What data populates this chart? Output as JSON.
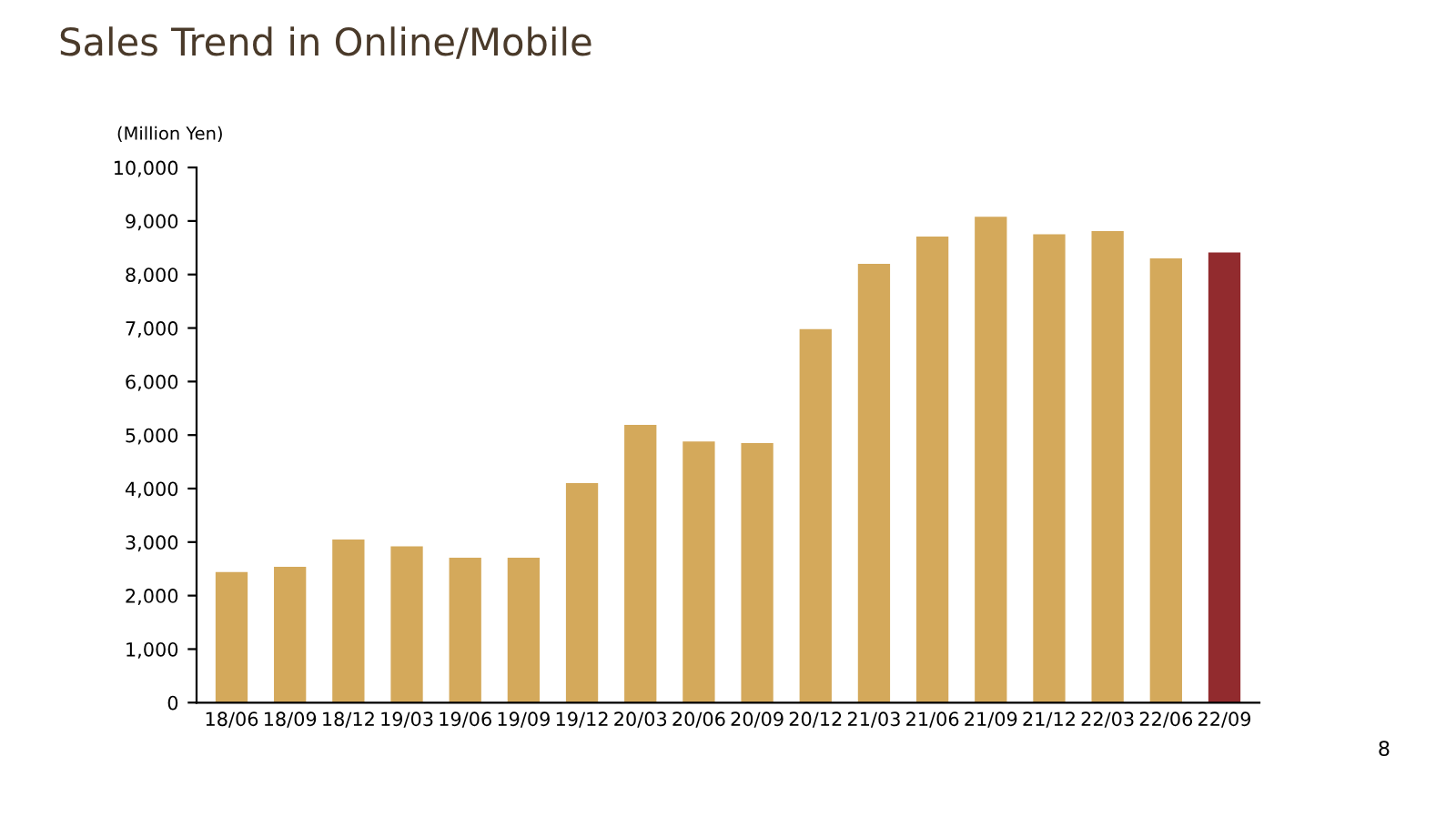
{
  "chart_data": {
    "type": "bar",
    "title": "Sales Trend in Online/Mobile",
    "ylabel": "(Million Yen)",
    "categories": [
      "18/06",
      "18/09",
      "18/12",
      "19/03",
      "19/06",
      "19/09",
      "19/12",
      "20/03",
      "20/06",
      "20/09",
      "20/12",
      "21/03",
      "21/06",
      "21/09",
      "21/12",
      "22/03",
      "22/06",
      "22/09"
    ],
    "values": [
      2440,
      2540,
      3050,
      2920,
      2710,
      2710,
      4100,
      5190,
      4880,
      4850,
      6980,
      8200,
      8710,
      9080,
      8750,
      8810,
      8300,
      8410
    ],
    "colors": [
      "#d4a95b",
      "#d4a95b",
      "#d4a95b",
      "#d4a95b",
      "#d4a95b",
      "#d4a95b",
      "#d4a95b",
      "#d4a95b",
      "#d4a95b",
      "#d4a95b",
      "#d4a95b",
      "#d4a95b",
      "#d4a95b",
      "#d4a95b",
      "#d4a95b",
      "#d4a95b",
      "#d4a95b",
      "#922b2e"
    ],
    "ylim": [
      0,
      10000
    ],
    "yticks": [
      0,
      {
        "value": 1000,
        "label": "1,000"
      },
      {
        "value": 2000,
        "label": "2,000"
      },
      {
        "value": 3000,
        "label": "3,000"
      },
      {
        "value": 4000,
        "label": "4,000"
      },
      {
        "value": 5000,
        "label": "5,000"
      },
      {
        "value": 6000,
        "label": "6,000"
      },
      {
        "value": 7000,
        "label": "7,000"
      },
      {
        "value": 8000,
        "label": "8,000"
      },
      {
        "value": 9000,
        "label": "9,000"
      },
      {
        "value": 10000,
        "label": "10,000"
      }
    ],
    "grid": false,
    "legend": false,
    "annotations": [
      "8"
    ]
  }
}
